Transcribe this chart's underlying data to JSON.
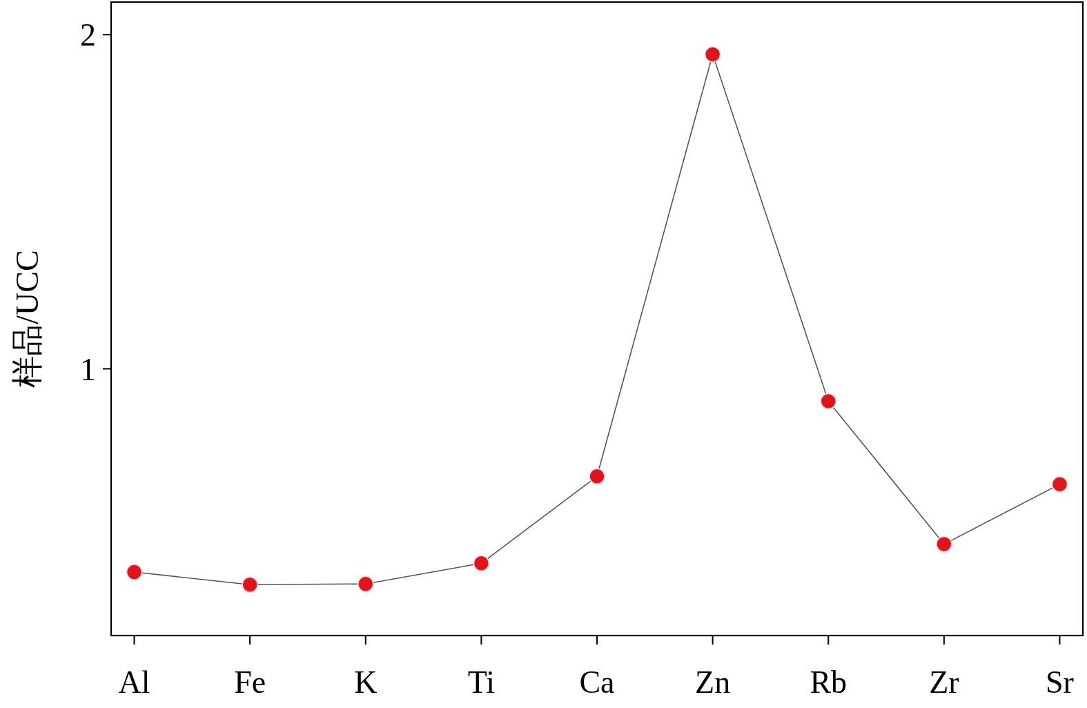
{
  "chart_data": {
    "type": "line",
    "ylabel": "样品/UCC",
    "categories": [
      "Al",
      "Fe",
      "K",
      "Ti",
      "Ca",
      "Zn",
      "Rb",
      "Zr",
      "Sr"
    ],
    "series": [
      {
        "color": "#e3121b",
        "values": [
          0.656,
          0.639,
          0.64,
          0.668,
          0.8,
          1.92,
          0.935,
          0.695,
          0.787
        ]
      }
    ],
    "log": "y",
    "ylim": [
      0.575,
      2.14
    ],
    "yticks": [
      1,
      2
    ],
    "marker": "circle",
    "line_style": "solid",
    "grid": false
  }
}
